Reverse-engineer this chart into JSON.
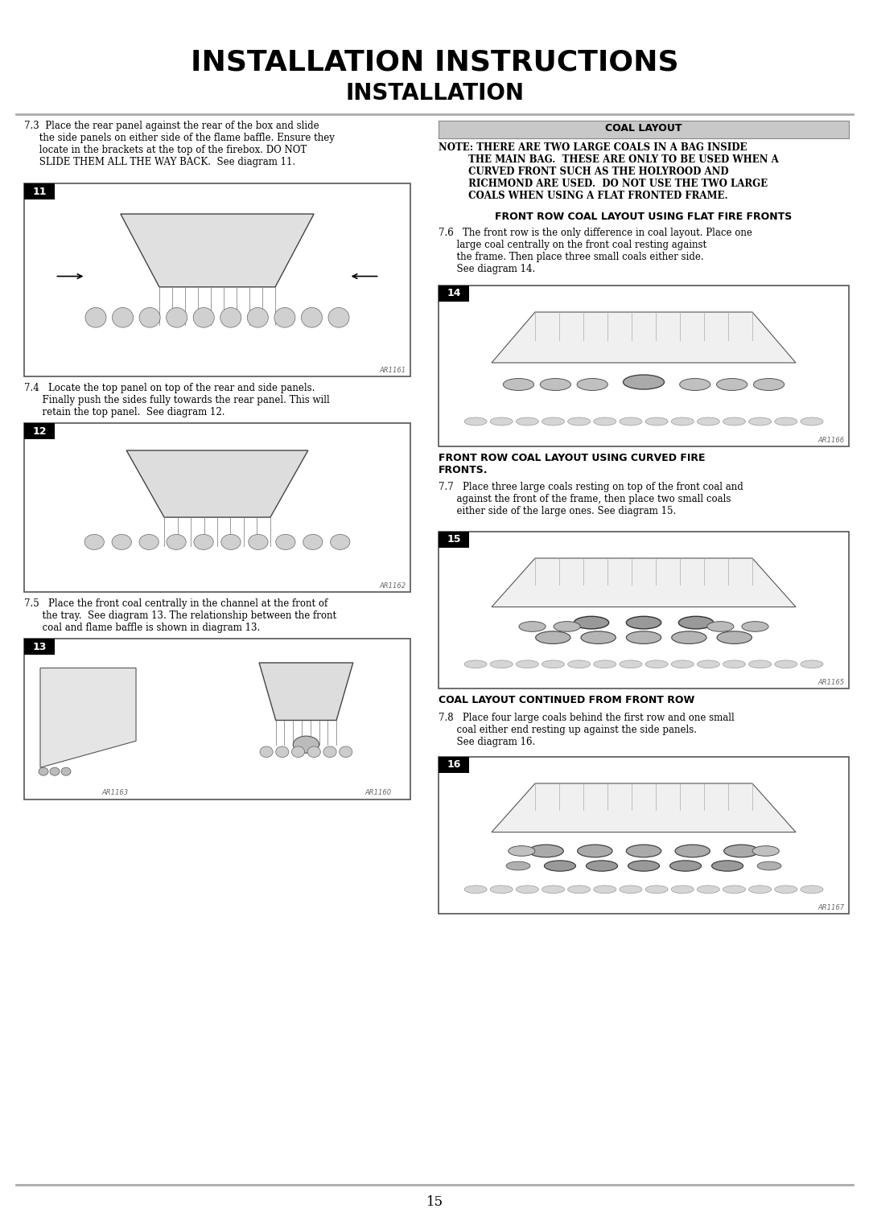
{
  "title_line1": "INSTALLATION INSTRUCTIONS",
  "title_line2": "INSTALLATION",
  "bg_color": "#ffffff",
  "page_number": "15",
  "section_73_text": "7.3  Place the rear panel against the rear of the box and slide\n     the side panels on either side of the flame baffle. Ensure they\n     locate in the brackets at the top of the firebox. DO NOT\n     SLIDE THEM ALL THE WAY BACK.  See diagram 11.",
  "section_74_text": "7.4   Locate the top panel on top of the rear and side panels.\n      Finally push the sides fully towards the rear panel. This will\n      retain the top panel.  See diagram 12.",
  "section_75_text": "7.5   Place the front coal centrally in the channel at the front of\n      the tray.  See diagram 13. The relationship between the front\n      coal and flame baffle is shown in diagram 13.",
  "coal_layout_header": "COAL LAYOUT",
  "note_text": "NOTE: THERE ARE TWO LARGE COALS IN A BAG INSIDE\n         THE MAIN BAG.  THESE ARE ONLY TO BE USED WHEN A\n         CURVED FRONT SUCH AS THE HOLYROOD AND\n         RICHMOND ARE USED.  DO NOT USE THE TWO LARGE\n         COALS WHEN USING A FLAT FRONTED FRAME.",
  "front_row_header": "FRONT ROW COAL LAYOUT USING FLAT FIRE FRONTS",
  "section_76_text": "7.6   The front row is the only difference in coal layout. Place one\n      large coal centrally on the front coal resting against\n      the frame. Then place three small coals either side.\n      See diagram 14.",
  "curved_header": "FRONT ROW COAL LAYOUT USING CURVED FIRE\nFRONTS.",
  "section_77_text": "7.7   Place three large coals resting on top of the front coal and\n      against the front of the frame, then place two small coals\n      either side of the large ones. See diagram 15.",
  "continued_header": "COAL LAYOUT CONTINUED FROM FRONT ROW",
  "section_78_text": "7.8   Place four large coals behind the first row and one small\n      coal either end resting up against the side panels.\n      See diagram 16.",
  "separator_color": "#aaaaaa",
  "diag11_ref": "AR1161",
  "diag12_ref": "AR1162",
  "diag13_ref_l": "AR1163",
  "diag13_ref_r": "AR1160",
  "diag14_ref": "AR1166",
  "diag15_ref": "AR1165",
  "diag16_ref": "AR1167"
}
